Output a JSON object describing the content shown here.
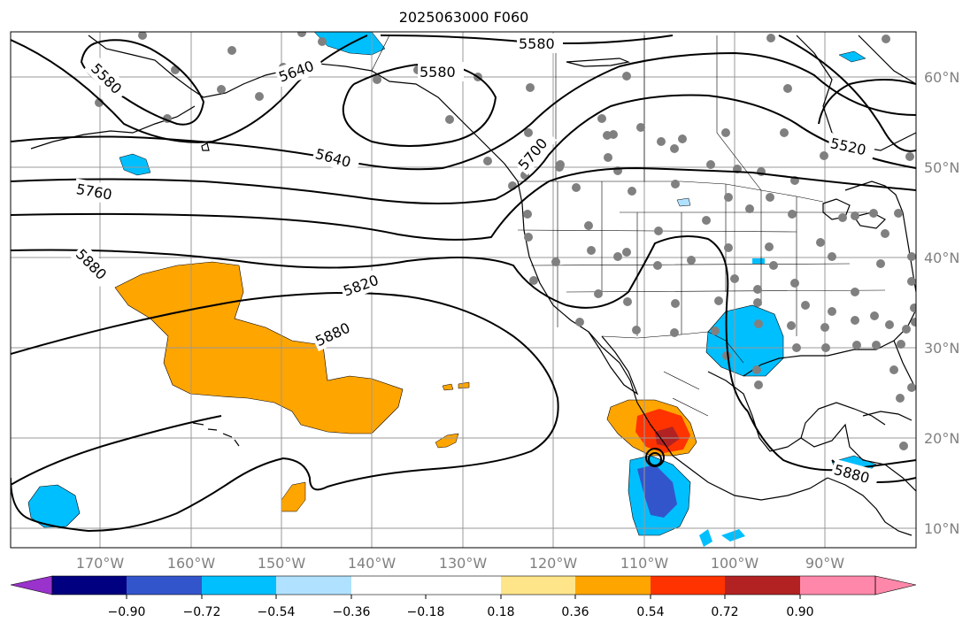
{
  "title": "2025063000 F060",
  "lat_labels": [
    "60°N",
    "50°N",
    "40°N",
    "30°N",
    "20°N",
    "10°N"
  ],
  "lon_labels": [
    "170°W",
    "160°W",
    "150°W",
    "140°W",
    "130°W",
    "120°W",
    "110°W",
    "100°W",
    "90°W"
  ],
  "contour_labels": [
    "5580",
    "5580",
    "5640",
    "5580",
    "5640",
    "5700",
    "5760",
    "5820",
    "5880",
    "5880",
    "5520",
    "5880"
  ],
  "colorbar": {
    "tick_labels": [
      "−0.90",
      "−0.72",
      "−0.54",
      "−0.36",
      "−0.18",
      "0.18",
      "0.36",
      "0.54",
      "0.72",
      "0.90"
    ],
    "colors": [
      "#9933cc",
      "#000080",
      "#3355cc",
      "#00bfff",
      "#b0e2ff",
      "#ffffff",
      "#ffe58a",
      "#ffa500",
      "#ff3300",
      "#b22222",
      "#ff88aa"
    ]
  }
}
